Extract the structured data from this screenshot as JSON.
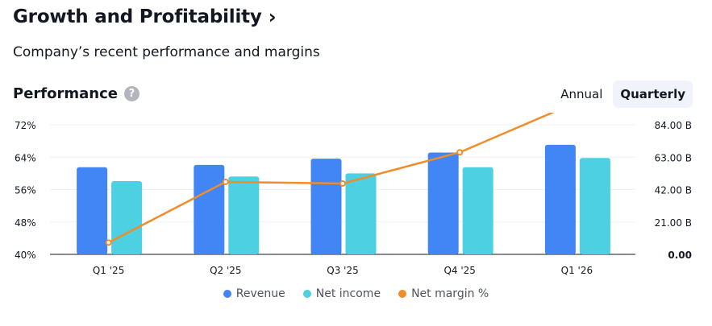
{
  "header": {
    "title": "Growth and Profitability",
    "chevron": "›",
    "subtitle": "Company’s recent performance and margins"
  },
  "performance": {
    "title": "Performance",
    "help": "?",
    "toggle": {
      "annual": "Annual",
      "quarterly": "Quarterly",
      "active": "quarterly"
    }
  },
  "colors": {
    "revenue": "#4285f4",
    "net_income": "#4dd0e1",
    "net_margin": "#f28c28",
    "grid": "#eef0f3",
    "axis": "#131722"
  },
  "chart_data": {
    "type": "bar",
    "categories": [
      "Q1 '25",
      "Q2 '25",
      "Q3 '25",
      "Q4 '25",
      "Q1 '26"
    ],
    "series": [
      {
        "name": "Revenue",
        "kind": "bar",
        "axis": "right",
        "values": [
          56.5,
          58,
          62,
          66,
          71
        ]
      },
      {
        "name": "Net income",
        "kind": "bar",
        "axis": "right",
        "values": [
          47.5,
          50.5,
          52.5,
          56.5,
          62.5
        ]
      },
      {
        "name": "Net margin %",
        "kind": "line",
        "axis": "left",
        "values": [
          42.9,
          57.9,
          57.5,
          65.2,
          77.6
        ]
      }
    ],
    "left_axis": {
      "ticks": [
        "72%",
        "64%",
        "56%",
        "48%",
        "40%"
      ],
      "ylim": [
        40,
        72
      ]
    },
    "right_axis": {
      "ticks": [
        "84.00 B",
        "63.00 B",
        "42.00 B",
        "21.00 B",
        "0.00"
      ],
      "ylim": [
        0,
        84
      ]
    },
    "grid": true,
    "legend_position": "bottom-center"
  }
}
